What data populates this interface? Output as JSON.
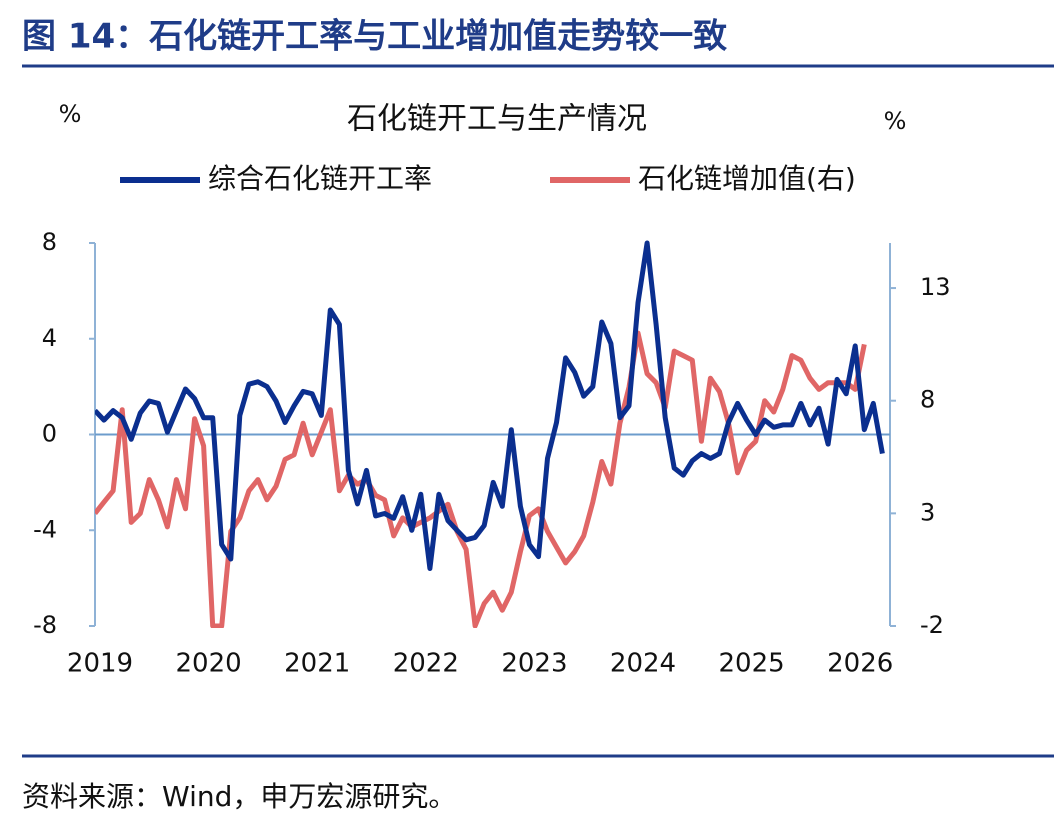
{
  "figure_title": "图 14：石化链开工率与工业增加值走势较一致",
  "source": "资料来源：Wind，申万宏源研究。",
  "chart_data": {
    "type": "line",
    "title": "石化链开工与生产情况",
    "y_label": "%",
    "y2_label": "%",
    "categories": [
      "2019",
      null,
      null,
      null,
      null,
      null,
      null,
      null,
      null,
      null,
      null,
      null,
      "2020",
      null,
      null,
      null,
      null,
      null,
      null,
      null,
      null,
      null,
      null,
      null,
      "2021",
      null,
      null,
      null,
      null,
      null,
      null,
      null,
      null,
      null,
      null,
      null,
      "2022",
      null,
      null,
      null,
      null,
      null,
      null,
      null,
      null,
      null,
      null,
      null,
      "2023",
      null,
      null,
      null,
      null,
      null,
      null,
      null,
      null,
      null,
      null,
      null,
      "2024",
      null,
      null,
      null,
      null,
      null,
      null,
      null,
      null,
      null,
      null,
      null,
      "2025",
      null,
      null,
      null,
      null,
      null,
      null,
      null,
      null,
      null,
      null,
      null,
      "2026",
      null,
      null,
      null
    ],
    "series": [
      {
        "name": "综合石化链开工率",
        "color": "#0b2f8f",
        "values": [
          1.0,
          0.6,
          1.0,
          0.7,
          -0.2,
          0.9,
          1.4,
          1.3,
          0.1,
          1.0,
          1.9,
          1.5,
          0.7,
          0.7,
          -4.6,
          -5.2,
          0.8,
          2.1,
          2.2,
          2.0,
          1.4,
          0.5,
          1.2,
          1.8,
          1.7,
          0.8,
          5.2,
          4.6,
          -1.5,
          -2.9,
          -1.5,
          -3.4,
          -3.3,
          -3.5,
          -2.6,
          -4.0,
          -2.5,
          -5.6,
          -2.5,
          -3.6,
          -4.0,
          -4.4,
          -4.3,
          -3.8,
          -2.0,
          -3.0,
          0.2,
          -3.0,
          -4.6,
          -5.1,
          -1.0,
          0.5,
          3.2,
          2.6,
          1.6,
          2.0,
          4.7,
          3.8,
          0.7,
          1.2,
          5.5,
          8.0,
          4.6,
          0.7,
          -1.4,
          -1.7,
          -1.1,
          -0.8,
          -1.0,
          -0.8,
          0.5,
          1.3,
          0.6,
          0.0,
          0.6,
          0.3,
          0.4,
          0.4,
          1.3,
          0.4,
          1.1,
          -0.4,
          2.3,
          1.7,
          3.7,
          0.2,
          1.3,
          -0.8
        ]
      },
      {
        "name": "石化链增加值(右)",
        "color": "#e06666",
        "axis": "y2",
        "values": [
          3.0,
          3.5,
          4.0,
          7.6,
          2.6,
          3.0,
          4.5,
          3.6,
          2.4,
          4.5,
          3.2,
          7.2,
          6.0,
          -2.0,
          -2.0,
          2.2,
          2.8,
          4.0,
          4.5,
          3.6,
          4.2,
          5.4,
          5.6,
          7.0,
          5.6,
          6.6,
          7.6,
          4.0,
          4.7,
          4.3,
          4.5,
          3.8,
          3.6,
          2.0,
          2.8,
          2.4,
          2.6,
          2.8,
          3.1,
          3.4,
          2.2,
          1.4,
          -2.0,
          -1.0,
          -0.5,
          -1.3,
          -0.5,
          1.3,
          2.9,
          3.2,
          2.2,
          1.5,
          0.8,
          1.3,
          2.0,
          3.5,
          5.3,
          4.3,
          7.0,
          8.6,
          11.0,
          9.2,
          8.8,
          7.7,
          10.2,
          10.0,
          9.8,
          6.2,
          9.0,
          8.4,
          7.0,
          4.8,
          5.8,
          6.2,
          8.0,
          7.5,
          8.5,
          10.0,
          9.8,
          9.0,
          8.5,
          8.8,
          8.8,
          8.8,
          8.5,
          10.5,
          null,
          null
        ]
      }
    ],
    "ylim": [
      -8,
      8
    ],
    "yticks": [
      -8,
      -4,
      0,
      4,
      8
    ],
    "y2lim": [
      -2,
      15
    ],
    "y2ticks": [
      -2,
      3,
      8,
      13
    ]
  }
}
